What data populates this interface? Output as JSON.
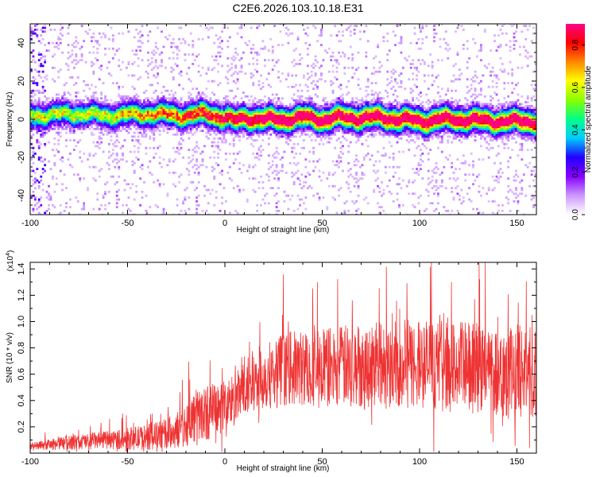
{
  "title": "C2E6.2026.103.10.18.E31",
  "chart_data": [
    {
      "type": "heatmap",
      "name": "spectrogram",
      "xlabel": "Height of straight line (km)",
      "ylabel": "Frequency (Hz)",
      "xlim": [
        -100,
        160
      ],
      "ylim": [
        -50,
        50
      ],
      "xticks": [
        -100,
        -50,
        0,
        50,
        100,
        150
      ],
      "xtick_labels": [
        "-100",
        "-50",
        "0",
        "50",
        "100",
        "150"
      ],
      "yticks": [
        -40,
        -20,
        0,
        20,
        40
      ],
      "ytick_labels": [
        "-40",
        "-20",
        "0",
        "20",
        "40"
      ],
      "colorbar": {
        "label": "Normalized spectral amplitude",
        "range": [
          0,
          0.9
        ],
        "ticks": [
          0,
          0.2,
          0.4,
          0.6,
          0.8
        ],
        "tick_labels": [
          "0.0",
          "0.2",
          "0.4",
          "0.6",
          "0.8"
        ],
        "colors": [
          "#ffffff",
          "#cc99ff",
          "#8800ff",
          "#2200ff",
          "#00ccff",
          "#00ff88",
          "#88ff00",
          "#ffff00",
          "#ff8800",
          "#ff0000",
          "#ff0088"
        ]
      },
      "ridge_center_hz": [
        {
          "x": -95,
          "y": 2
        },
        {
          "x": -80,
          "y": 3
        },
        {
          "x": -60,
          "y": 2
        },
        {
          "x": -40,
          "y": 3
        },
        {
          "x": -20,
          "y": 2
        },
        {
          "x": -10,
          "y": 3
        },
        {
          "x": 0,
          "y": 1
        },
        {
          "x": 5,
          "y": -1
        },
        {
          "x": 10,
          "y": 1
        },
        {
          "x": 20,
          "y": 0
        },
        {
          "x": 30,
          "y": 0
        },
        {
          "x": 40,
          "y": 1
        },
        {
          "x": 50,
          "y": 0
        },
        {
          "x": 60,
          "y": 1
        },
        {
          "x": 80,
          "y": 1
        },
        {
          "x": 100,
          "y": -1
        },
        {
          "x": 110,
          "y": 0
        },
        {
          "x": 120,
          "y": 0
        },
        {
          "x": 140,
          "y": -1
        },
        {
          "x": 160,
          "y": -1
        }
      ]
    },
    {
      "type": "line",
      "name": "snr",
      "xlabel": "Height of straight line (km)",
      "ylabel": "SNR (10 * v/v)",
      "y_scale_label": "(x10",
      "y_scale_exp": "4",
      "xlim": [
        -100,
        160
      ],
      "ylim": [
        0,
        1.45
      ],
      "xticks": [
        -100,
        -50,
        0,
        50,
        100,
        150
      ],
      "xtick_labels": [
        "-100",
        "-50",
        "0",
        "50",
        "100",
        "150"
      ],
      "yticks": [
        0.2,
        0.4,
        0.6,
        0.8,
        1.0,
        1.2,
        1.4
      ],
      "ytick_labels": [
        "0.2",
        "0.4",
        "0.6",
        "0.8",
        "1.0",
        "1.2",
        "1.4"
      ],
      "color": "#ee3333",
      "envelope": [
        {
          "x": -100,
          "mean": 0.05,
          "spread": 0.04
        },
        {
          "x": -80,
          "mean": 0.08,
          "spread": 0.08
        },
        {
          "x": -60,
          "mean": 0.1,
          "spread": 0.1
        },
        {
          "x": -40,
          "mean": 0.12,
          "spread": 0.14
        },
        {
          "x": -25,
          "mean": 0.16,
          "spread": 0.18
        },
        {
          "x": -15,
          "mean": 0.28,
          "spread": 0.3
        },
        {
          "x": -5,
          "mean": 0.33,
          "spread": 0.3
        },
        {
          "x": 5,
          "mean": 0.4,
          "spread": 0.3
        },
        {
          "x": 15,
          "mean": 0.55,
          "spread": 0.35
        },
        {
          "x": 30,
          "mean": 0.64,
          "spread": 0.4
        },
        {
          "x": 60,
          "mean": 0.66,
          "spread": 0.45
        },
        {
          "x": 100,
          "mean": 0.68,
          "spread": 0.5
        },
        {
          "x": 130,
          "mean": 0.64,
          "spread": 0.5
        },
        {
          "x": 160,
          "mean": 0.62,
          "spread": 0.5
        }
      ]
    }
  ]
}
